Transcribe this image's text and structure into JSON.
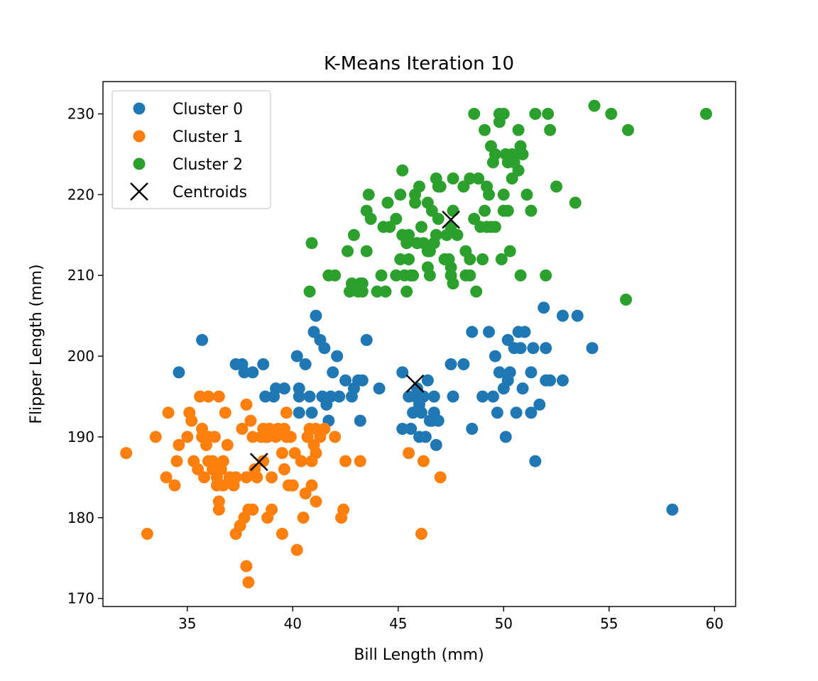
{
  "chart_data": {
    "type": "scatter",
    "title": "K-Means Iteration 10",
    "xlabel": "Bill Length (mm)",
    "ylabel": "Flipper Length (mm)",
    "xlim": [
      31,
      61
    ],
    "ylim": [
      169,
      234
    ],
    "xticks": [
      35,
      40,
      45,
      50,
      55,
      60
    ],
    "yticks": [
      170,
      180,
      190,
      200,
      210,
      220,
      230
    ],
    "grid": false,
    "legend_position": "top-left",
    "series": [
      {
        "name": "Cluster 0",
        "color": "#1f77b4",
        "marker": "circle",
        "points": [
          [
            34.6,
            198
          ],
          [
            35.7,
            202
          ],
          [
            37.3,
            199
          ],
          [
            37.6,
            199
          ],
          [
            37.7,
            198
          ],
          [
            38.1,
            198
          ],
          [
            38.6,
            199
          ],
          [
            38.7,
            195
          ],
          [
            39.1,
            195
          ],
          [
            39.2,
            196
          ],
          [
            39.6,
            196
          ],
          [
            40.2,
            200
          ],
          [
            40.3,
            193
          ],
          [
            40.3,
            195
          ],
          [
            40.3,
            196
          ],
          [
            40.6,
            199
          ],
          [
            40.8,
            195
          ],
          [
            40.9,
            193
          ],
          [
            41.0,
            203
          ],
          [
            41.1,
            205
          ],
          [
            41.3,
            202
          ],
          [
            41.4,
            195
          ],
          [
            41.5,
            201
          ],
          [
            41.6,
            194
          ],
          [
            41.7,
            192
          ],
          [
            41.8,
            195
          ],
          [
            41.9,
            198
          ],
          [
            42.1,
            200
          ],
          [
            42.2,
            195
          ],
          [
            42.5,
            197
          ],
          [
            42.8,
            195
          ],
          [
            42.9,
            196
          ],
          [
            43.1,
            197
          ],
          [
            43.2,
            192
          ],
          [
            43.3,
            197
          ],
          [
            43.5,
            202
          ],
          [
            44.1,
            196
          ],
          [
            45.2,
            198
          ],
          [
            45.2,
            191
          ],
          [
            45.5,
            195
          ],
          [
            45.6,
            191
          ],
          [
            45.7,
            193
          ],
          [
            45.8,
            195
          ],
          [
            45.9,
            196
          ],
          [
            46.0,
            190
          ],
          [
            46.0,
            194
          ],
          [
            46.1,
            193
          ],
          [
            46.2,
            195
          ],
          [
            46.3,
            190
          ],
          [
            46.4,
            197
          ],
          [
            46.5,
            192
          ],
          [
            46.6,
            192
          ],
          [
            46.7,
            193
          ],
          [
            46.7,
            195
          ],
          [
            46.8,
            189
          ],
          [
            46.9,
            192
          ],
          [
            47.5,
            199
          ],
          [
            47.6,
            195
          ],
          [
            48.1,
            199
          ],
          [
            48.5,
            191
          ],
          [
            48.5,
            203
          ],
          [
            49.0,
            195
          ],
          [
            49.3,
            203
          ],
          [
            49.5,
            195
          ],
          [
            49.6,
            200
          ],
          [
            49.7,
            193
          ],
          [
            49.8,
            198
          ],
          [
            50.0,
            196
          ],
          [
            50.1,
            190
          ],
          [
            50.2,
            197
          ],
          [
            50.2,
            202
          ],
          [
            50.3,
            198
          ],
          [
            50.5,
            201
          ],
          [
            50.6,
            193
          ],
          [
            50.7,
            203
          ],
          [
            50.8,
            201
          ],
          [
            50.9,
            196
          ],
          [
            51.0,
            203
          ],
          [
            51.3,
            193
          ],
          [
            51.3,
            198
          ],
          [
            51.4,
            201
          ],
          [
            51.5,
            187
          ],
          [
            51.7,
            194
          ],
          [
            51.9,
            206
          ],
          [
            52.0,
            201
          ],
          [
            52.0,
            197
          ],
          [
            52.2,
            197
          ],
          [
            52.8,
            197
          ],
          [
            52.8,
            205
          ],
          [
            53.5,
            205
          ],
          [
            54.2,
            201
          ],
          [
            58.0,
            181
          ]
        ]
      },
      {
        "name": "Cluster 1",
        "color": "#ff7f0e",
        "marker": "circle",
        "points": [
          [
            32.1,
            188
          ],
          [
            33.1,
            178
          ],
          [
            33.5,
            190
          ],
          [
            34.0,
            185
          ],
          [
            34.1,
            193
          ],
          [
            34.4,
            184
          ],
          [
            34.5,
            187
          ],
          [
            34.6,
            189
          ],
          [
            35.0,
            190
          ],
          [
            35.1,
            193
          ],
          [
            35.2,
            192
          ],
          [
            35.3,
            187
          ],
          [
            35.5,
            186
          ],
          [
            35.6,
            195
          ],
          [
            35.7,
            191
          ],
          [
            35.7,
            190
          ],
          [
            35.8,
            185
          ],
          [
            35.9,
            189
          ],
          [
            36.0,
            190
          ],
          [
            36.0,
            187
          ],
          [
            36.0,
            195
          ],
          [
            36.2,
            187
          ],
          [
            36.2,
            186
          ],
          [
            36.3,
            190
          ],
          [
            36.4,
            185
          ],
          [
            36.4,
            184
          ],
          [
            36.5,
            195
          ],
          [
            36.5,
            182
          ],
          [
            36.5,
            181
          ],
          [
            36.6,
            186
          ],
          [
            36.7,
            187
          ],
          [
            36.7,
            184
          ],
          [
            36.8,
            193
          ],
          [
            36.9,
            189
          ],
          [
            37.0,
            185
          ],
          [
            37.2,
            184
          ],
          [
            37.3,
            185
          ],
          [
            37.3,
            178
          ],
          [
            37.5,
            179
          ],
          [
            37.6,
            191
          ],
          [
            37.7,
            180
          ],
          [
            37.8,
            194
          ],
          [
            37.8,
            185
          ],
          [
            37.8,
            174
          ],
          [
            37.9,
            181
          ],
          [
            37.9,
            172
          ],
          [
            38.0,
            192
          ],
          [
            38.1,
            190
          ],
          [
            38.1,
            181
          ],
          [
            38.2,
            186
          ],
          [
            38.3,
            185
          ],
          [
            38.5,
            190
          ],
          [
            38.6,
            191
          ],
          [
            38.6,
            187
          ],
          [
            38.7,
            190
          ],
          [
            38.8,
            190
          ],
          [
            38.8,
            180
          ],
          [
            38.9,
            191
          ],
          [
            39.0,
            185
          ],
          [
            39.0,
            181
          ],
          [
            39.2,
            190
          ],
          [
            39.3,
            191
          ],
          [
            39.5,
            188
          ],
          [
            39.5,
            178
          ],
          [
            39.6,
            191
          ],
          [
            39.6,
            186
          ],
          [
            39.7,
            193
          ],
          [
            39.7,
            190
          ],
          [
            39.8,
            184
          ],
          [
            39.9,
            190
          ],
          [
            40.0,
            184
          ],
          [
            40.1,
            188
          ],
          [
            40.2,
            176
          ],
          [
            40.4,
            187
          ],
          [
            40.5,
            180
          ],
          [
            40.6,
            183
          ],
          [
            40.7,
            190
          ],
          [
            40.8,
            191
          ],
          [
            40.9,
            184
          ],
          [
            40.9,
            187
          ],
          [
            41.0,
            189
          ],
          [
            41.1,
            188
          ],
          [
            41.1,
            182
          ],
          [
            41.1,
            191
          ],
          [
            41.3,
            190
          ],
          [
            41.5,
            191
          ],
          [
            42.0,
            190
          ],
          [
            42.3,
            180
          ],
          [
            42.4,
            181
          ],
          [
            42.5,
            187
          ],
          [
            43.2,
            187
          ],
          [
            45.5,
            188
          ],
          [
            46.1,
            178
          ],
          [
            46.2,
            187
          ],
          [
            47.0,
            185
          ]
        ]
      },
      {
        "name": "Cluster 2",
        "color": "#2ca02c",
        "marker": "circle",
        "points": [
          [
            40.8,
            208
          ],
          [
            40.9,
            214
          ],
          [
            41.7,
            210
          ],
          [
            42.0,
            210
          ],
          [
            42.6,
            213
          ],
          [
            42.7,
            208
          ],
          [
            42.8,
            209
          ],
          [
            42.9,
            215
          ],
          [
            43.1,
            208
          ],
          [
            43.2,
            209
          ],
          [
            43.3,
            208
          ],
          [
            43.5,
            213
          ],
          [
            43.5,
            218
          ],
          [
            43.6,
            220
          ],
          [
            43.7,
            217
          ],
          [
            44.0,
            208
          ],
          [
            44.4,
            208
          ],
          [
            44.2,
            210
          ],
          [
            44.5,
            219
          ],
          [
            44.6,
            216
          ],
          [
            44.9,
            217
          ],
          [
            45.1,
            220
          ],
          [
            45.1,
            212
          ],
          [
            45.2,
            215
          ],
          [
            45.2,
            223
          ],
          [
            45.3,
            210
          ],
          [
            45.4,
            214
          ],
          [
            45.4,
            208
          ],
          [
            45.5,
            212
          ],
          [
            45.5,
            215
          ],
          [
            45.7,
            210
          ],
          [
            45.8,
            220
          ],
          [
            45.9,
            214
          ],
          [
            46.1,
            216
          ],
          [
            46.2,
            214
          ],
          [
            46.4,
            219
          ],
          [
            46.4,
            211
          ],
          [
            46.5,
            210
          ],
          [
            46.5,
            213
          ],
          [
            46.6,
            218
          ],
          [
            46.7,
            214
          ],
          [
            46.8,
            215
          ],
          [
            46.9,
            217
          ],
          [
            47.0,
            221
          ],
          [
            47.2,
            212
          ],
          [
            47.3,
            215
          ],
          [
            47.4,
            212
          ],
          [
            47.5,
            216
          ],
          [
            47.5,
            210
          ],
          [
            47.6,
            218
          ],
          [
            47.6,
            209
          ],
          [
            47.8,
            215
          ],
          [
            48.1,
            221
          ],
          [
            48.2,
            213
          ],
          [
            48.4,
            222
          ],
          [
            48.4,
            210
          ],
          [
            48.6,
            217
          ],
          [
            48.7,
            208
          ],
          [
            48.8,
            222
          ],
          [
            48.9,
            216
          ],
          [
            49.0,
            212
          ],
          [
            49.1,
            218
          ],
          [
            49.2,
            216
          ],
          [
            49.3,
            220
          ],
          [
            49.4,
            216
          ],
          [
            49.5,
            224
          ],
          [
            49.6,
            225
          ],
          [
            49.8,
            229
          ],
          [
            49.9,
            212
          ],
          [
            50.0,
            218
          ],
          [
            50.0,
            220
          ],
          [
            50.1,
            225
          ],
          [
            50.2,
            218
          ],
          [
            50.4,
            222
          ],
          [
            50.5,
            224
          ],
          [
            50.7,
            223
          ],
          [
            50.8,
            226
          ],
          [
            50.8,
            210
          ],
          [
            51.1,
            220
          ],
          [
            51.3,
            218
          ],
          [
            51.5,
            230
          ],
          [
            52.1,
            230
          ],
          [
            52.2,
            228
          ],
          [
            52.5,
            221
          ],
          [
            53.4,
            219
          ],
          [
            54.3,
            231
          ],
          [
            55.1,
            230
          ],
          [
            55.9,
            228
          ],
          [
            55.8,
            207
          ],
          [
            59.6,
            230
          ],
          [
            48.6,
            230
          ],
          [
            49.1,
            228
          ],
          [
            49.8,
            230
          ],
          [
            50.0,
            230
          ],
          [
            50.2,
            224
          ],
          [
            50.4,
            225
          ],
          [
            52.0,
            210
          ],
          [
            50.3,
            213
          ],
          [
            46.9,
            221
          ],
          [
            48.4,
            212
          ],
          [
            45.6,
            210
          ],
          [
            46.8,
            222
          ],
          [
            47.6,
            222
          ],
          [
            47.5,
            211
          ],
          [
            49.2,
            221
          ],
          [
            49.6,
            216
          ],
          [
            50.9,
            225
          ],
          [
            50.7,
            228
          ],
          [
            48.2,
            210
          ],
          [
            44.9,
            210
          ],
          [
            43.3,
            209
          ],
          [
            46.0,
            221
          ],
          [
            46.4,
            213
          ],
          [
            49.4,
            226
          ],
          [
            45.8,
            219
          ],
          [
            44.3,
            216
          ]
        ]
      },
      {
        "name": "Centroids",
        "color": "#000000",
        "marker": "x",
        "points": [
          [
            38.4,
            186.9
          ],
          [
            45.8,
            196.6
          ],
          [
            47.5,
            216.9
          ]
        ]
      }
    ]
  }
}
